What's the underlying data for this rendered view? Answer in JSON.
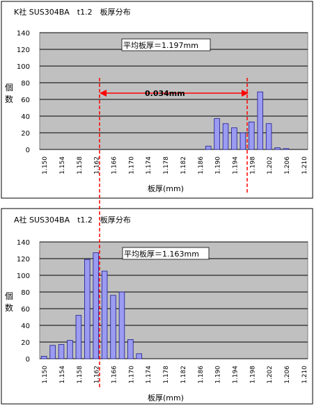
{
  "chart_data": [
    {
      "type": "bar",
      "title": "K社 SUS304BA　t1.2　板厚分布",
      "ylabel": "個数",
      "xlabel": "板厚(mm)",
      "ylim": [
        0,
        140
      ],
      "yticks": [
        0,
        20,
        40,
        60,
        80,
        100,
        120,
        140
      ],
      "xticks": [
        "1.150",
        "1.154",
        "1.158",
        "1.162",
        "1.166",
        "1.170",
        "1.174",
        "1.178",
        "1.182",
        "1.186",
        "1.190",
        "1.194",
        "1.198",
        "1.202",
        "1.206",
        "1.210"
      ],
      "grid": true,
      "mean_label": "平均板厚＝1.197mm",
      "diff_label": "0.034mm",
      "categories": [
        "1.150",
        "1.152",
        "1.154",
        "1.156",
        "1.158",
        "1.160",
        "1.162",
        "1.164",
        "1.166",
        "1.168",
        "1.170",
        "1.172",
        "1.174",
        "1.176",
        "1.178",
        "1.180",
        "1.182",
        "1.184",
        "1.186",
        "1.188",
        "1.190",
        "1.192",
        "1.194",
        "1.196",
        "1.198",
        "1.200",
        "1.202",
        "1.204",
        "1.206",
        "1.208",
        "1.210"
      ],
      "values": [
        0,
        0,
        0,
        0,
        0,
        0,
        0,
        0,
        0,
        0,
        0,
        0,
        0,
        0,
        0,
        0,
        0,
        0,
        0,
        4,
        37,
        31,
        26,
        20,
        33,
        69,
        31,
        2,
        1,
        0,
        0
      ],
      "colors": {
        "bar": "#9b9bf2",
        "bar_edge": "#1a1a8c",
        "plot_bg": "#c0c0c0",
        "grid": "#000000",
        "marker": "#ff0000"
      }
    },
    {
      "type": "bar",
      "title": "A社 SUS304BA　t1.2　板厚分布",
      "ylabel": "個数",
      "xlabel": "板厚(mm)",
      "ylim": [
        0,
        140
      ],
      "yticks": [
        0,
        20,
        40,
        60,
        80,
        100,
        120,
        140
      ],
      "xticks": [
        "1.150",
        "1.154",
        "1.158",
        "1.162",
        "1.166",
        "1.170",
        "1.174",
        "1.178",
        "1.182",
        "1.186",
        "1.190",
        "1.194",
        "1.198",
        "1.202",
        "1.206",
        "1.210"
      ],
      "grid": true,
      "mean_label": "平均板厚＝1.163mm",
      "categories": [
        "1.150",
        "1.152",
        "1.154",
        "1.156",
        "1.158",
        "1.160",
        "1.162",
        "1.164",
        "1.166",
        "1.168",
        "1.170",
        "1.172",
        "1.174",
        "1.176",
        "1.178",
        "1.180",
        "1.182",
        "1.184",
        "1.186",
        "1.188",
        "1.190",
        "1.192",
        "1.194",
        "1.196",
        "1.198",
        "1.200",
        "1.202",
        "1.204",
        "1.206",
        "1.208",
        "1.210"
      ],
      "values": [
        3,
        16,
        17,
        22,
        52,
        119,
        127,
        105,
        76,
        80,
        23,
        6,
        0,
        0,
        0,
        0,
        0,
        0,
        0,
        0,
        0,
        0,
        0,
        0,
        0,
        0,
        0,
        0,
        0,
        0,
        0
      ],
      "colors": {
        "bar": "#9b9bf2",
        "bar_edge": "#1a1a8c",
        "plot_bg": "#c0c0c0",
        "grid": "#000000",
        "marker": "#ff0000"
      }
    }
  ]
}
